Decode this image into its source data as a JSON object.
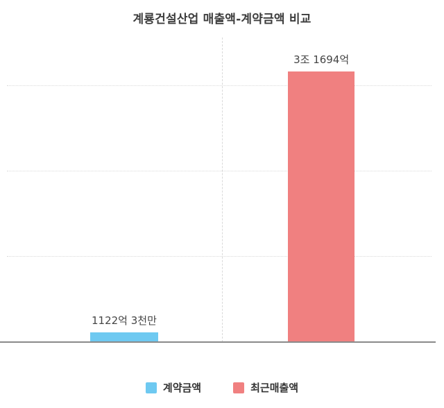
{
  "title": "계룡건설산업 매출액-계약금액 비교",
  "chart_data": {
    "type": "bar",
    "title": "계룡건설산업 매출액-계약금액 비교",
    "categories": [
      "계약금액",
      "최근매출액"
    ],
    "values": [
      1122.3,
      31694
    ],
    "value_unit": "억원",
    "bar_labels": [
      "1122억 3천만",
      "3조 1694억"
    ],
    "colors": [
      "#6ec9f1",
      "#f08080"
    ],
    "xlabel": "",
    "ylabel": "",
    "ylim": [
      0,
      36000
    ],
    "gridlines": [
      10000,
      20000,
      30000
    ],
    "grid_style": "dotted",
    "legend_position": "bottom",
    "legend": [
      {
        "label": "계약금액",
        "color": "#6ec9f1"
      },
      {
        "label": "최근매출액",
        "color": "#f08080"
      }
    ]
  }
}
